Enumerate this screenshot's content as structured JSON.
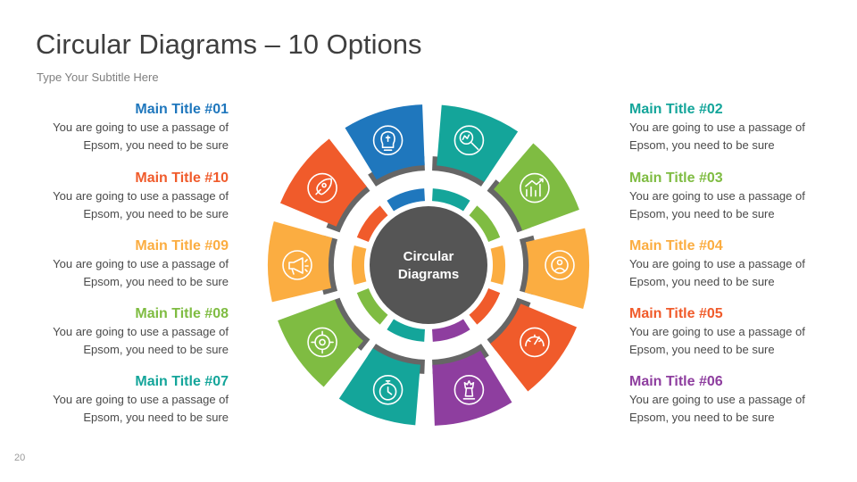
{
  "title": "Circular Diagrams – 10 Options",
  "subtitle": "Type Your Subtitle Here",
  "page_number": "20",
  "center": {
    "line1": "Circular",
    "line2": "Diagrams"
  },
  "colors": {
    "blue": "#1f77bd",
    "teal": "#14a59a",
    "green": "#7fbc42",
    "yellow": "#fbad41",
    "orange": "#f05b2b",
    "purple": "#8e3e9f",
    "center": "#555555",
    "connector": "#666666"
  },
  "options": [
    {
      "id": "01",
      "title": "Main Title #01",
      "line1": "You are going to use a passage of",
      "line2": "Epsom, you need to be sure",
      "color": "#1f77bd",
      "icon": "lightbulb-puzzle-icon"
    },
    {
      "id": "02",
      "title": "Main Title #02",
      "line1": "You are going to use a passage of",
      "line2": "Epsom, you need to be sure",
      "color": "#14a59a",
      "icon": "magnifier-chart-icon"
    },
    {
      "id": "03",
      "title": "Main Title #03",
      "line1": "You are going to use a passage of",
      "line2": "Epsom, you need to be sure",
      "color": "#7fbc42",
      "icon": "growth-chart-icon"
    },
    {
      "id": "04",
      "title": "Main Title #04",
      "line1": "You are going to use a passage of",
      "line2": "Epsom, you need to be sure",
      "color": "#fbad41",
      "icon": "target-audience-icon"
    },
    {
      "id": "05",
      "title": "Main Title #05",
      "line1": "You are going to use a passage of",
      "line2": "Epsom, you need to be sure",
      "color": "#f05b2b",
      "icon": "speedometer-gear-icon"
    },
    {
      "id": "06",
      "title": "Main Title #06",
      "line1": "You are going to use a passage of",
      "line2": "Epsom, you need to be sure",
      "color": "#8e3e9f",
      "icon": "chess-strategy-icon"
    },
    {
      "id": "07",
      "title": "Main Title #07",
      "line1": "You are going to use a passage of",
      "line2": "Epsom, you need to be sure",
      "color": "#14a59a",
      "icon": "stopwatch-icon"
    },
    {
      "id": "08",
      "title": "Main Title #08",
      "line1": "You are going to use a passage of",
      "line2": "Epsom, you need to be sure",
      "color": "#7fbc42",
      "icon": "gear-target-icon"
    },
    {
      "id": "09",
      "title": "Main Title #09",
      "line1": "You are going to use a passage of",
      "line2": "Epsom, you need to be sure",
      "color": "#fbad41",
      "icon": "megaphone-icon"
    },
    {
      "id": "10",
      "title": "Main Title #10",
      "line1": "You are going to use a passage of",
      "line2": "Epsom, you need to be sure",
      "color": "#f05b2b",
      "icon": "rocket-icon"
    }
  ]
}
